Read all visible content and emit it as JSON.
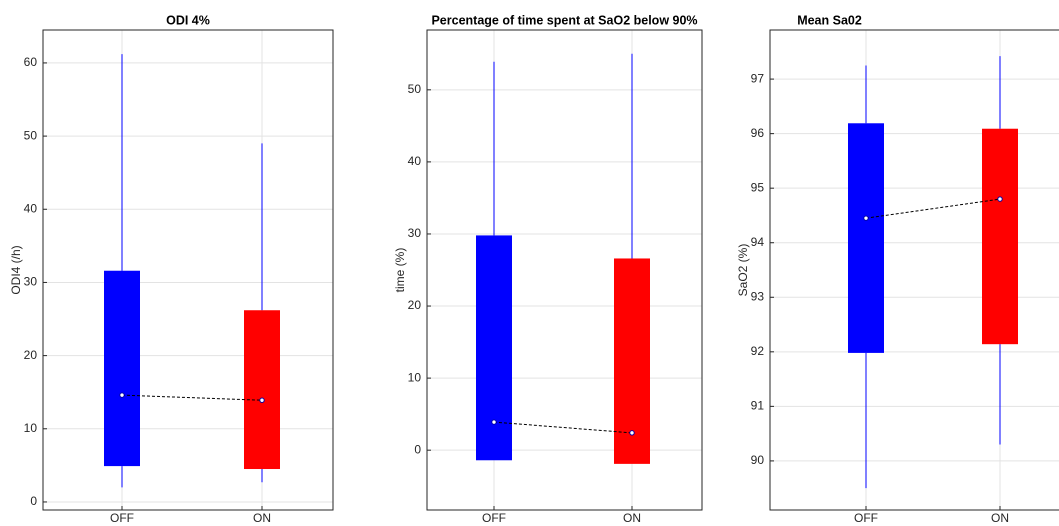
{
  "chart_data": [
    {
      "type": "box",
      "title": "ODI 4%",
      "ylabel": "ODI4 (/h)",
      "categories": [
        "OFF",
        "ON"
      ],
      "colors": [
        "#0000ff",
        "#ff0000"
      ],
      "whisker_low": [
        2,
        2.7
      ],
      "q1": [
        4.9,
        4.5
      ],
      "median": [
        14.6,
        13.9
      ],
      "q3": [
        31.6,
        26.2
      ],
      "whisker_high": [
        61.2,
        49
      ],
      "ylim": [
        -1.1,
        64.5
      ],
      "yticks": [
        0,
        10,
        20,
        30,
        40,
        50,
        60
      ],
      "grid": true
    },
    {
      "type": "box",
      "title": "Percentage of time spent at SaO2 below 90%",
      "ylabel": "time (%)",
      "categories": [
        "OFF",
        "ON"
      ],
      "colors": [
        "#0000ff",
        "#ff0000"
      ],
      "whisker_low": [
        null,
        null
      ],
      "q1": [
        -1.4,
        -1.9
      ],
      "median": [
        3.9,
        2.4
      ],
      "q3": [
        29.8,
        26.6
      ],
      "whisker_high": [
        53.9,
        55
      ],
      "ylim": [
        -8.3,
        58.3
      ],
      "yticks": [
        0,
        10,
        20,
        30,
        40,
        50
      ],
      "grid": true
    },
    {
      "type": "box",
      "title": "Mean Sa02",
      "ylabel": "SaO2 (%)",
      "categories": [
        "OFF",
        "ON"
      ],
      "colors": [
        "#0000ff",
        "#ff0000"
      ],
      "whisker_low": [
        89.5,
        90.3
      ],
      "q1": [
        91.98,
        92.14
      ],
      "median": [
        94.45,
        94.8
      ],
      "q3": [
        96.19,
        96.09
      ],
      "whisker_high": [
        97.25,
        97.42
      ],
      "ylim": [
        89.1,
        97.9
      ],
      "yticks": [
        90,
        91,
        92,
        93,
        94,
        95,
        96,
        97
      ],
      "grid": true
    }
  ]
}
